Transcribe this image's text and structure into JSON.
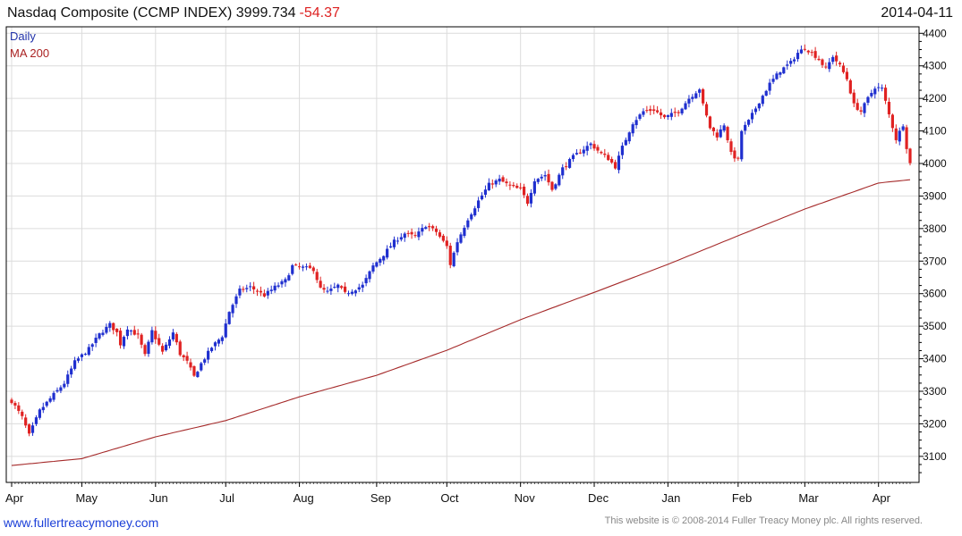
{
  "header": {
    "title": "Nasdaq Composite (CCMP INDEX) 3999.734",
    "change": "-54.37",
    "date": "2014-04-11"
  },
  "legend": [
    {
      "label": "Daily",
      "color": "#2233aa"
    },
    {
      "label": "MA 200",
      "color": "#aa2222"
    }
  ],
  "footer": {
    "website": "www.fullertreacymoney.com",
    "copyright": "This website is © 2008-2014 Fuller Treacy Money plc. All rights reserved."
  },
  "colors": {
    "up": "#1f2fcf",
    "down": "#e02222",
    "ma": "#a52a2a",
    "grid": "#dcdcdc",
    "change_text": "#dd2222"
  },
  "chart_data": {
    "type": "candlestick",
    "title": "Nasdaq Composite (CCMP INDEX)",
    "last_value": 3999.734,
    "change": -54.37,
    "ylim": [
      3020,
      4420
    ],
    "y_ticks": [
      3100,
      3200,
      3300,
      3400,
      3500,
      3600,
      3700,
      3800,
      3900,
      4000,
      4100,
      4200,
      4300,
      4400
    ],
    "x_labels": [
      "Apr",
      "May",
      "Jun",
      "Jul",
      "Aug",
      "Sep",
      "Oct",
      "Nov",
      "Dec",
      "Jan",
      "Feb",
      "Mar",
      "Apr"
    ],
    "x_label_index": [
      0,
      20,
      41,
      61,
      82,
      104,
      124,
      145,
      166,
      187,
      207,
      226,
      247
    ],
    "grid": true,
    "legend_position": "top-left",
    "anchors": [
      [
        0,
        3270
      ],
      [
        3,
        3220
      ],
      [
        5,
        3165
      ],
      [
        8,
        3240
      ],
      [
        12,
        3290
      ],
      [
        15,
        3325
      ],
      [
        18,
        3390
      ],
      [
        22,
        3430
      ],
      [
        25,
        3475
      ],
      [
        28,
        3505
      ],
      [
        30,
        3480
      ],
      [
        31,
        3445
      ],
      [
        33,
        3495
      ],
      [
        36,
        3470
      ],
      [
        38,
        3410
      ],
      [
        40,
        3485
      ],
      [
        43,
        3420
      ],
      [
        46,
        3480
      ],
      [
        48,
        3415
      ],
      [
        50,
        3390
      ],
      [
        52,
        3345
      ],
      [
        54,
        3385
      ],
      [
        57,
        3435
      ],
      [
        60,
        3470
      ],
      [
        62,
        3545
      ],
      [
        65,
        3610
      ],
      [
        68,
        3620
      ],
      [
        72,
        3595
      ],
      [
        75,
        3620
      ],
      [
        78,
        3640
      ],
      [
        80,
        3685
      ],
      [
        83,
        3680
      ],
      [
        86,
        3675
      ],
      [
        88,
        3615
      ],
      [
        90,
        3605
      ],
      [
        93,
        3625
      ],
      [
        95,
        3600
      ],
      [
        97,
        3610
      ],
      [
        100,
        3625
      ],
      [
        103,
        3685
      ],
      [
        106,
        3720
      ],
      [
        109,
        3760
      ],
      [
        112,
        3785
      ],
      [
        115,
        3775
      ],
      [
        118,
        3810
      ],
      [
        121,
        3790
      ],
      [
        124,
        3745
      ],
      [
        125,
        3690
      ],
      [
        127,
        3760
      ],
      [
        130,
        3830
      ],
      [
        133,
        3885
      ],
      [
        136,
        3935
      ],
      [
        139,
        3950
      ],
      [
        142,
        3930
      ],
      [
        145,
        3920
      ],
      [
        147,
        3880
      ],
      [
        149,
        3950
      ],
      [
        152,
        3965
      ],
      [
        154,
        3920
      ],
      [
        157,
        3985
      ],
      [
        160,
        4020
      ],
      [
        163,
        4045
      ],
      [
        165,
        4060
      ],
      [
        168,
        4030
      ],
      [
        170,
        4015
      ],
      [
        172,
        3990
      ],
      [
        174,
        4050
      ],
      [
        177,
        4125
      ],
      [
        180,
        4160
      ],
      [
        183,
        4165
      ],
      [
        186,
        4140
      ],
      [
        188,
        4150
      ],
      [
        190,
        4160
      ],
      [
        193,
        4200
      ],
      [
        196,
        4230
      ],
      [
        197,
        4180
      ],
      [
        199,
        4110
      ],
      [
        201,
        4085
      ],
      [
        203,
        4120
      ],
      [
        205,
        4030
      ],
      [
        207,
        4010
      ],
      [
        208,
        4100
      ],
      [
        210,
        4130
      ],
      [
        213,
        4190
      ],
      [
        216,
        4245
      ],
      [
        219,
        4285
      ],
      [
        222,
        4310
      ],
      [
        224,
        4340
      ],
      [
        226,
        4355
      ],
      [
        228,
        4340
      ],
      [
        230,
        4320
      ],
      [
        232,
        4290
      ],
      [
        234,
        4330
      ],
      [
        236,
        4300
      ],
      [
        238,
        4260
      ],
      [
        240,
        4180
      ],
      [
        242,
        4160
      ],
      [
        244,
        4200
      ],
      [
        246,
        4235
      ],
      [
        248,
        4230
      ],
      [
        250,
        4150
      ],
      [
        252,
        4075
      ],
      [
        254,
        4120
      ],
      [
        255,
        4050
      ],
      [
        256,
        4000
      ]
    ],
    "ma200_anchors": [
      [
        0,
        3072
      ],
      [
        20,
        3093
      ],
      [
        41,
        3160
      ],
      [
        61,
        3210
      ],
      [
        82,
        3283
      ],
      [
        104,
        3349
      ],
      [
        124,
        3426
      ],
      [
        145,
        3520
      ],
      [
        166,
        3604
      ],
      [
        187,
        3690
      ],
      [
        207,
        3778
      ],
      [
        226,
        3860
      ],
      [
        247,
        3940
      ],
      [
        256,
        3950
      ]
    ]
  }
}
